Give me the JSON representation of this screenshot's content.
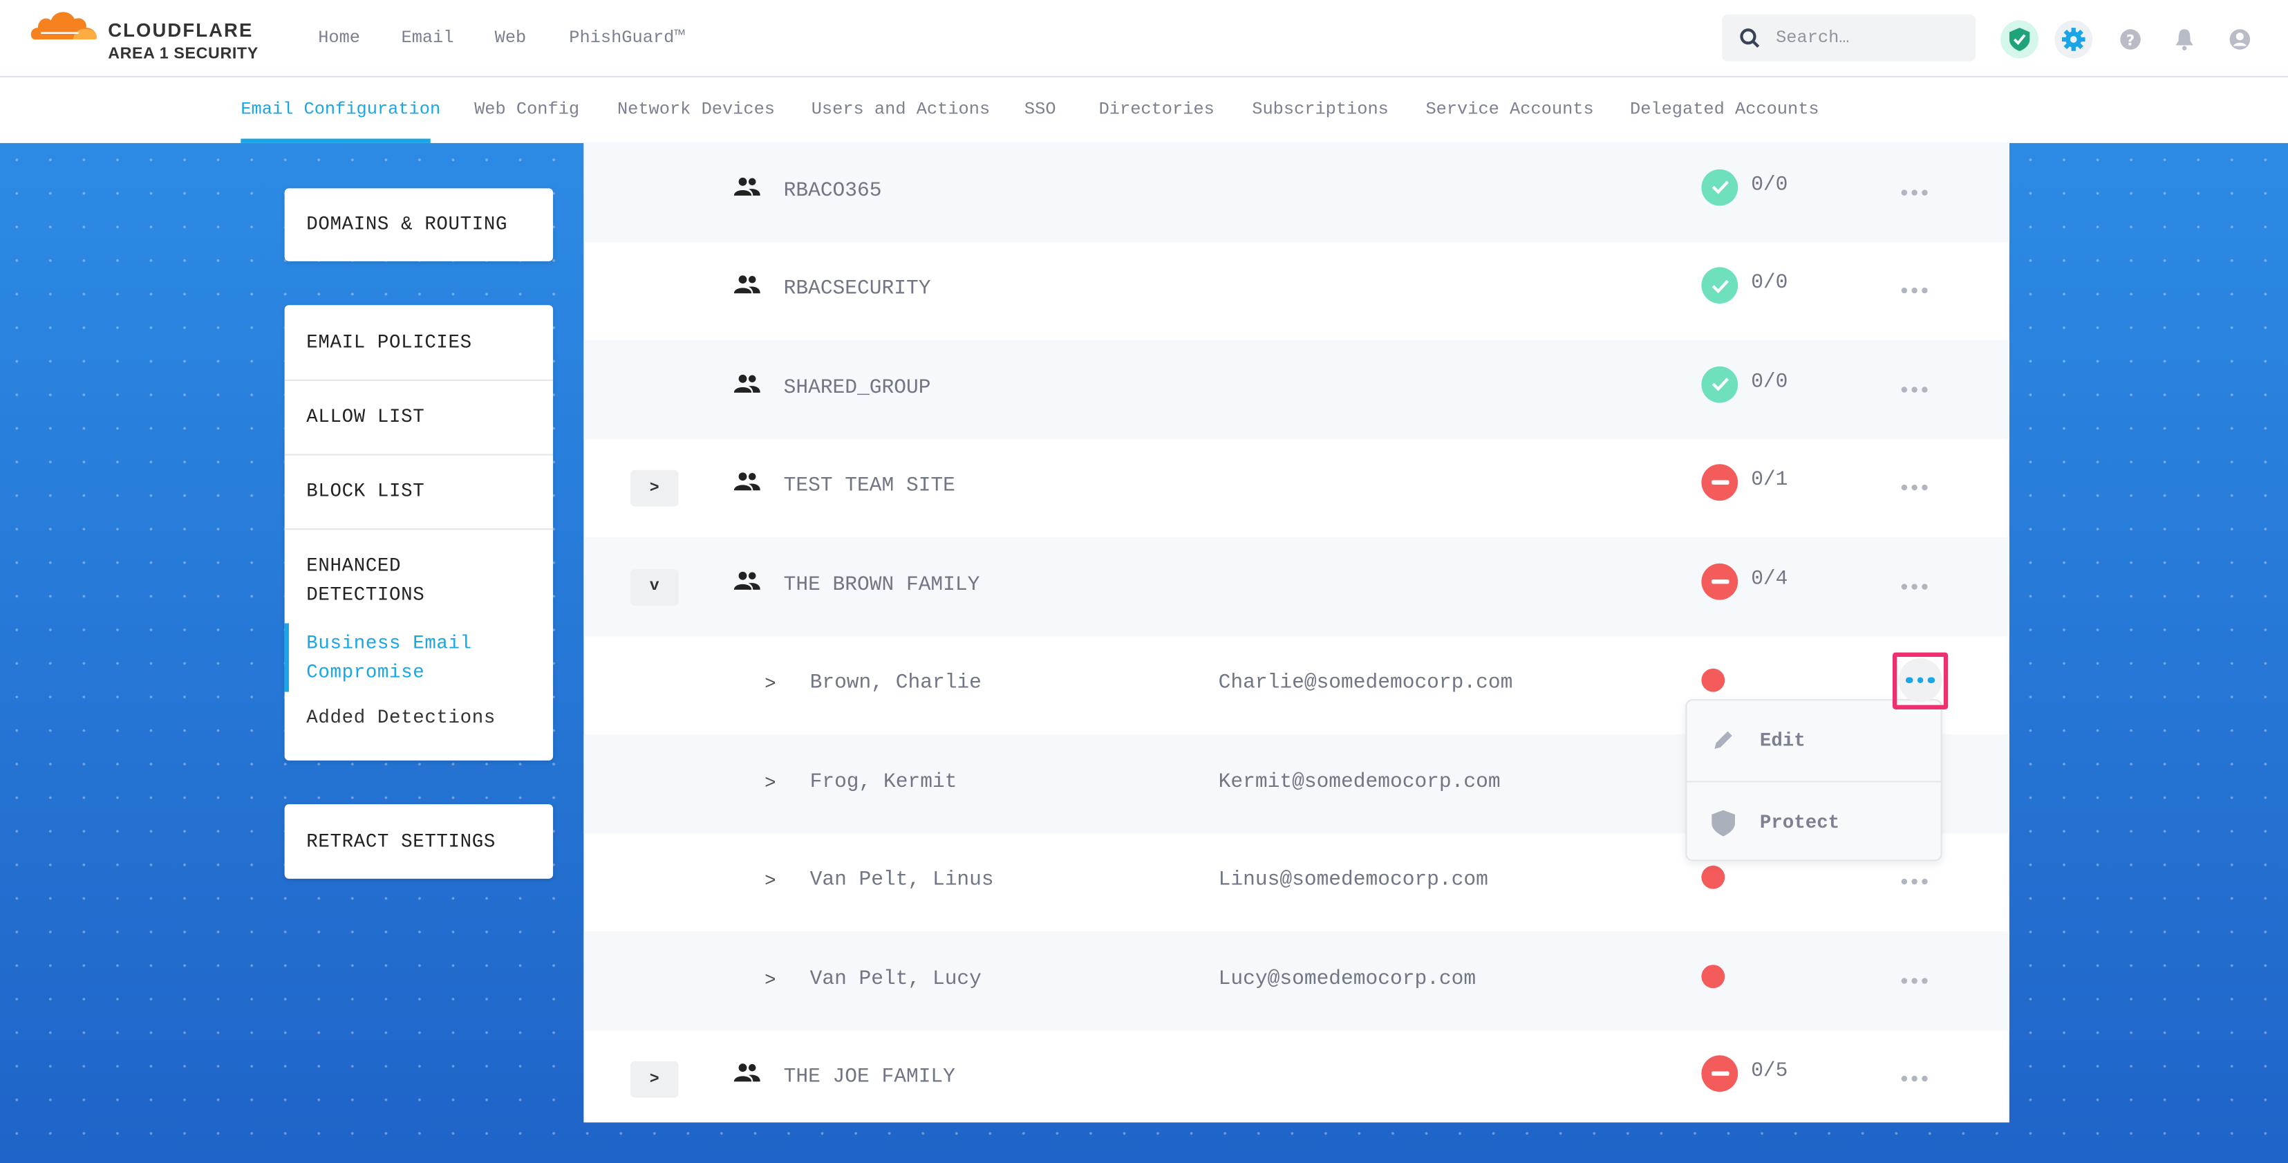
{
  "header": {
    "logo": {
      "brand": "CLOUDFLARE",
      "product": "AREA 1 SECURITY"
    },
    "nav": [
      "Home",
      "Email",
      "Web",
      "PhishGuard™"
    ],
    "search_placeholder": "Search…",
    "icons": [
      "shield-check-icon",
      "gear-icon",
      "help-icon",
      "bell-icon",
      "user-icon"
    ]
  },
  "subnav": {
    "items": [
      "Email Configuration",
      "Web Config",
      "Network Devices",
      "Users and Actions",
      "SSO",
      "Directories",
      "Subscriptions",
      "Service Accounts",
      "Delegated Accounts"
    ],
    "active": "Email Configuration"
  },
  "sidebar": {
    "domains": "DOMAINS & ROUTING",
    "policies": [
      "EMAIL POLICIES",
      "ALLOW LIST",
      "BLOCK LIST"
    ],
    "enhanced": {
      "title_line1": "ENHANCED",
      "title_line2": "DETECTIONS",
      "sub_active_line1": "Business Email",
      "sub_active_line2": "Compromise",
      "sub2": "Added Detections"
    },
    "retract": "RETRACT SETTINGS"
  },
  "groups_top": [
    {
      "name": "RBACO365",
      "status": "ok",
      "count": "0/0"
    },
    {
      "name": "RBACSECURITY",
      "status": "ok",
      "count": "0/0"
    },
    {
      "name": "SHARED_GROUP",
      "status": "ok",
      "count": "0/0"
    },
    {
      "name": "TEST TEAM SITE",
      "status": "blocked",
      "count": "0/1",
      "expand": ">"
    },
    {
      "name": "THE BROWN FAMILY",
      "status": "blocked",
      "count": "0/4",
      "expand": "v"
    }
  ],
  "members": [
    {
      "chevron": ">",
      "name": "Brown, Charlie",
      "email": "Charlie@somedemocorp.com"
    },
    {
      "chevron": ">",
      "name": "Frog, Kermit",
      "email": "Kermit@somedemocorp.com"
    },
    {
      "chevron": ">",
      "name": "Van Pelt, Linus",
      "email": "Linus@somedemocorp.com"
    },
    {
      "chevron": ">",
      "name": "Van Pelt, Lucy",
      "email": "Lucy@somedemocorp.com"
    }
  ],
  "group_bottom": {
    "name": "THE JOE FAMILY",
    "status": "blocked",
    "count": "0/5",
    "expand": ">"
  },
  "menu": {
    "edit": "Edit",
    "protect": "Protect"
  },
  "colors": {
    "accent": "#1aa6e6",
    "ok": "#6ee0bd",
    "blocked": "#f45b5b",
    "highlight": "#ef2f6f"
  }
}
